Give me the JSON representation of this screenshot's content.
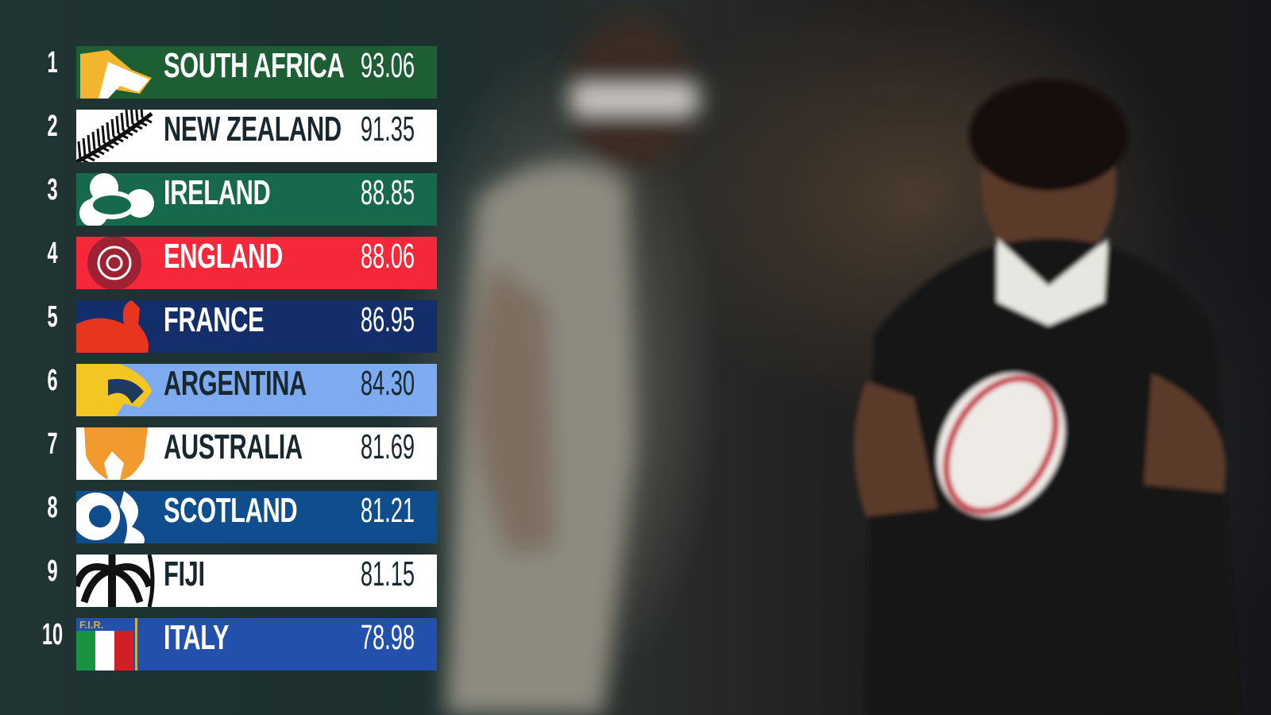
{
  "rankings": [
    {
      "rank": "1",
      "team": "SOUTH AFRICA",
      "score": "93.06",
      "bg": "#1d5e34",
      "fg": "#ffffff",
      "logo": "springbok-icon"
    },
    {
      "rank": "2",
      "team": "NEW ZEALAND",
      "score": "91.35",
      "bg": "#ffffff",
      "fg": "#18282e",
      "logo": "silver-fern-icon"
    },
    {
      "rank": "3",
      "team": "IRELAND",
      "score": "88.85",
      "bg": "#16694a",
      "fg": "#ffffff",
      "logo": "shamrock-icon"
    },
    {
      "rank": "4",
      "team": "ENGLAND",
      "score": "88.06",
      "bg": "#f5283a",
      "fg": "#ffffff",
      "logo": "rose-icon"
    },
    {
      "rank": "5",
      "team": "FRANCE",
      "score": "86.95",
      "bg": "#142e6b",
      "fg": "#ffffff",
      "logo": "rooster-icon"
    },
    {
      "rank": "6",
      "team": "ARGENTINA",
      "score": "84.30",
      "bg": "#7eaaf0",
      "fg": "#18282e",
      "logo": "jaguar-icon"
    },
    {
      "rank": "7",
      "team": "AUSTRALIA",
      "score": "81.69",
      "bg": "#ffffff",
      "fg": "#18282e",
      "logo": "wallaby-icon"
    },
    {
      "rank": "8",
      "team": "SCOTLAND",
      "score": "81.21",
      "bg": "#0f4d8c",
      "fg": "#ffffff",
      "logo": "thistle-icon"
    },
    {
      "rank": "9",
      "team": "FIJI",
      "score": "81.15",
      "bg": "#ffffff",
      "fg": "#18282e",
      "logo": "palm-tree-icon"
    },
    {
      "rank": "10",
      "team": "ITALY",
      "score": "78.98",
      "bg": "#2450ad",
      "fg": "#ffffff",
      "logo": "fir-shield-icon",
      "logo_text": "F.I.R."
    }
  ]
}
